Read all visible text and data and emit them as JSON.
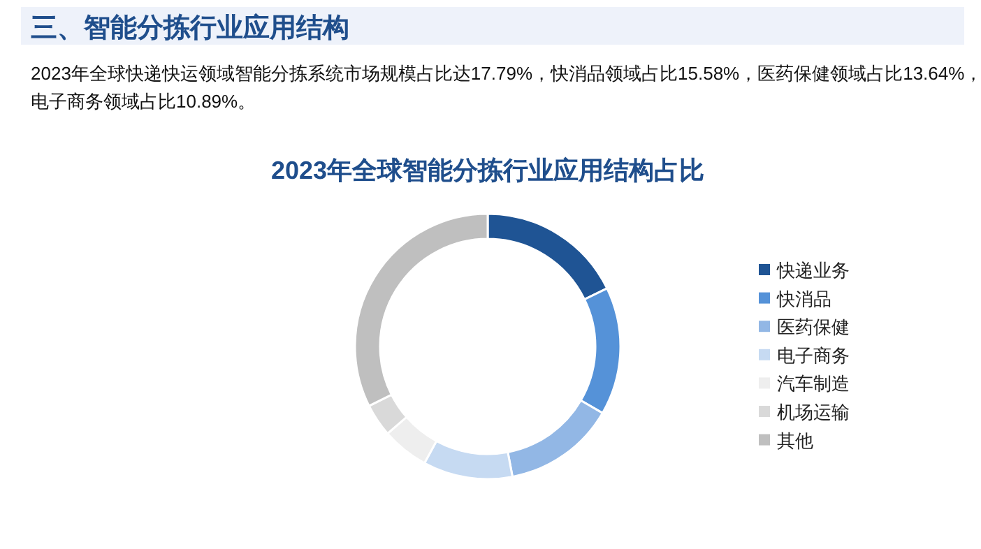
{
  "chart_data": {
    "type": "donut",
    "title": "2023年全球智能分拣行业应用结构占比",
    "annotations": [
      "三、智能分拣行业应用结构",
      "2023年全球快递快运领域智能分拣系统市场规模占比达17.79%，快消品领域占比15.58%，医药保健领域占比13.64%，",
      "电子商务领域占比10.89%。"
    ],
    "categories": [
      "快递业务",
      "快消品",
      "医药保健",
      "电子商务",
      "汽车制造",
      "机场运输",
      "其他"
    ],
    "values": [
      17.79,
      15.58,
      13.64,
      10.89,
      5.7,
      4.0,
      32.4
    ],
    "colors": [
      "#1f5494",
      "#5592d8",
      "#92b7e5",
      "#c6daf2",
      "#eeeeee",
      "#d9d9d9",
      "#bfbfbf"
    ],
    "legend": "right"
  }
}
